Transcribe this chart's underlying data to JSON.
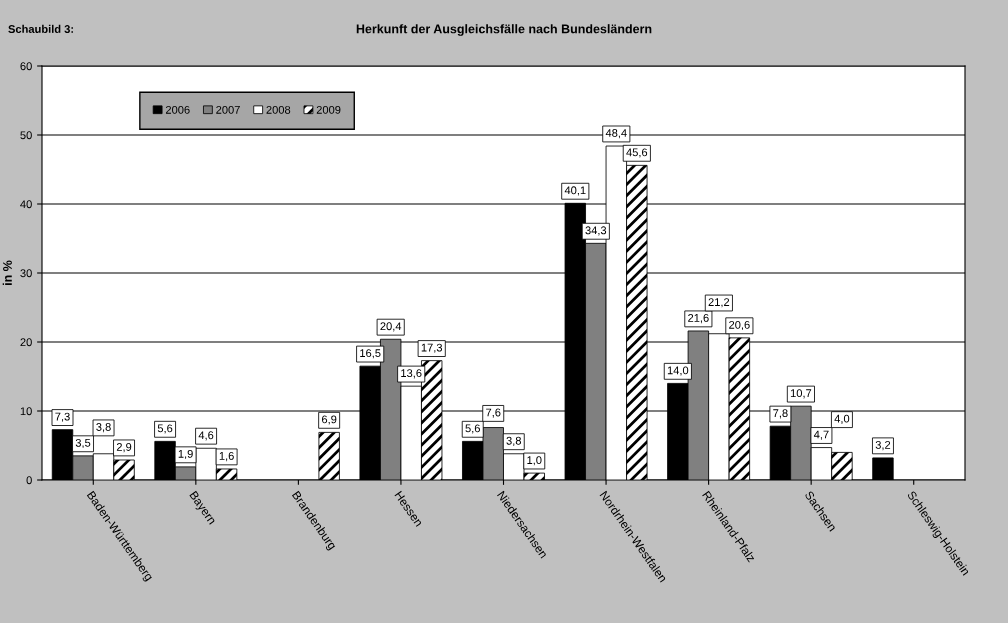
{
  "chart_data": {
    "type": "bar",
    "title": "Herkunft der Ausgleichsfälle nach Bundesländern",
    "ylabel": "in %",
    "annotations": [
      "Schaubild 3:"
    ],
    "categories": [
      "Baden-Württemberg",
      "Bayern",
      "Brandenburg",
      "Hessen",
      "Niedersachsen",
      "Nordrhein-Westfalen",
      "Rheinland-Pfalz",
      "Sachsen",
      "Schleswig-Holstein"
    ],
    "series": [
      {
        "name": "2006",
        "color": "#000000",
        "values": [
          7.3,
          5.6,
          null,
          16.5,
          5.6,
          40.1,
          14.0,
          7.8,
          3.2
        ],
        "value_labels": [
          "7,3",
          "5,6",
          null,
          "16,5",
          "5,6",
          "40,1",
          "14,0",
          "7,8",
          "3,2"
        ]
      },
      {
        "name": "2007",
        "color": "#808080",
        "values": [
          3.5,
          1.9,
          null,
          20.4,
          7.6,
          34.3,
          21.6,
          10.7,
          null
        ],
        "value_labels": [
          "3,5",
          "1,9",
          null,
          "20,4",
          "7,6",
          "34,3",
          "21,6",
          "10,7",
          null
        ]
      },
      {
        "name": "2008",
        "color": "#ffffff",
        "values": [
          3.8,
          4.6,
          null,
          13.6,
          3.8,
          48.4,
          21.2,
          4.7,
          null
        ],
        "value_labels": [
          "3,8",
          "4,6",
          null,
          "13,6",
          "3,8",
          "48,4",
          "21,2",
          "4,7",
          null
        ]
      },
      {
        "name": "2009",
        "color": "#000000",
        "values": [
          2.9,
          1.6,
          6.9,
          17.3,
          1.0,
          45.6,
          20.6,
          4.0,
          null
        ],
        "value_labels": [
          "2,9",
          "1,6",
          "6,9",
          "17,3",
          "1,0",
          "45,6",
          "20,6",
          "4,0",
          null
        ]
      }
    ],
    "ylim": [
      0,
      60
    ],
    "yticks": [
      0,
      10,
      20,
      30,
      40,
      50,
      60
    ],
    "grid": "y",
    "legend": "top left"
  }
}
